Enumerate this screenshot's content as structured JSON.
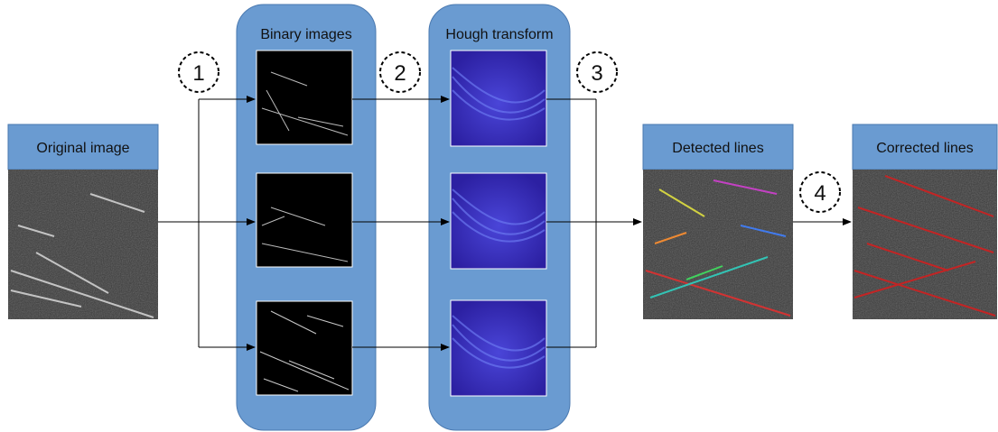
{
  "labels": {
    "original": "Original image",
    "binary": "Binary images",
    "hough": "Hough transform",
    "detected": "Detected lines",
    "corrected": "Corrected lines"
  },
  "steps": {
    "s1": "1",
    "s2": "2",
    "s3": "3",
    "s4": "4"
  },
  "colors": {
    "panel": "#6a9bd1",
    "header": "#6a9bd1",
    "hough_fill": "#2f23a8",
    "photo_bg": "#3a3a3a",
    "binary_bg": "#000000"
  }
}
